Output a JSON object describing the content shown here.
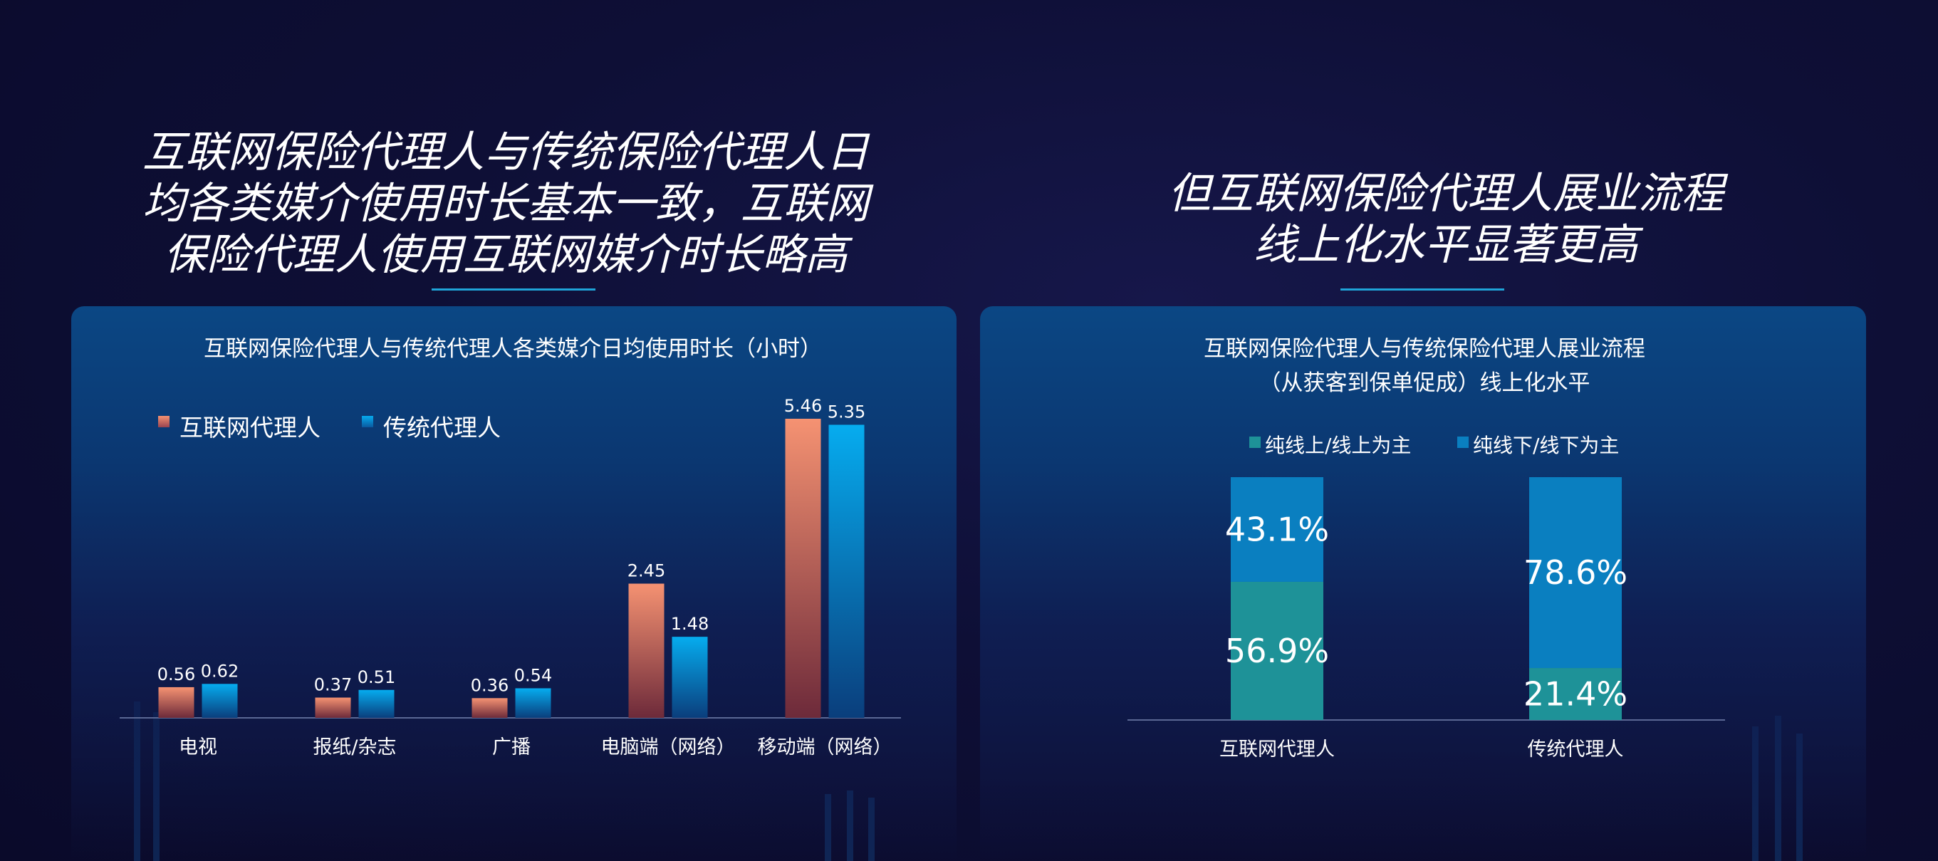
{
  "left": {
    "headline": [
      "互联网保险代理人与传统保险代理人日",
      "均各类媒介使用时长基本一致，互联网",
      "保险代理人使用互联网媒介时长略高"
    ]
  },
  "right": {
    "headline": [
      "但互联网保险代理人展业流程",
      "线上化水平显著更高"
    ]
  },
  "colors": {
    "internet_agent_top": "#f59272",
    "internet_agent_bottom": "#6d2a3a",
    "traditional_agent_top": "#06acef",
    "traditional_agent_bottom": "#0a3e7c",
    "online": "#1e9298",
    "offline": "#0a7fc0"
  },
  "chart_data": [
    {
      "type": "bar",
      "title": "互联网保险代理人与传统代理人各类媒介日均使用时长（小时）",
      "categories": [
        "电视",
        "报纸/杂志",
        "广播",
        "电脑端（网络）",
        "移动端（网络）"
      ],
      "series": [
        {
          "name": "互联网代理人",
          "values": [
            0.56,
            0.37,
            0.36,
            2.45,
            5.46
          ]
        },
        {
          "name": "传统代理人",
          "values": [
            0.62,
            0.51,
            0.54,
            1.48,
            5.35
          ]
        }
      ],
      "value_labels": [
        [
          "0.56",
          "0.37",
          "0.36",
          "2.45",
          "5.46"
        ],
        [
          "0.62",
          "0.51",
          "0.54",
          "1.48",
          "5.35"
        ]
      ],
      "ylim": [
        0,
        5.46
      ],
      "legend": "top-left",
      "grid": false
    },
    {
      "type": "bar",
      "stacked": true,
      "title": [
        "互联网保险代理人与传统保险代理人展业流程",
        "（从获客到保单促成）线上化水平"
      ],
      "categories": [
        "互联网代理人",
        "传统代理人"
      ],
      "series": [
        {
          "name": "纯线上/线上为主",
          "values": [
            56.9,
            21.4
          ]
        },
        {
          "name": "纯线下/线下为主",
          "values": [
            43.1,
            78.6
          ]
        }
      ],
      "value_labels": [
        [
          "56.9%",
          "21.4%"
        ],
        [
          "43.1%",
          "78.6%"
        ]
      ],
      "ylim": [
        0,
        100
      ],
      "legend": "top-center",
      "grid": false
    }
  ]
}
